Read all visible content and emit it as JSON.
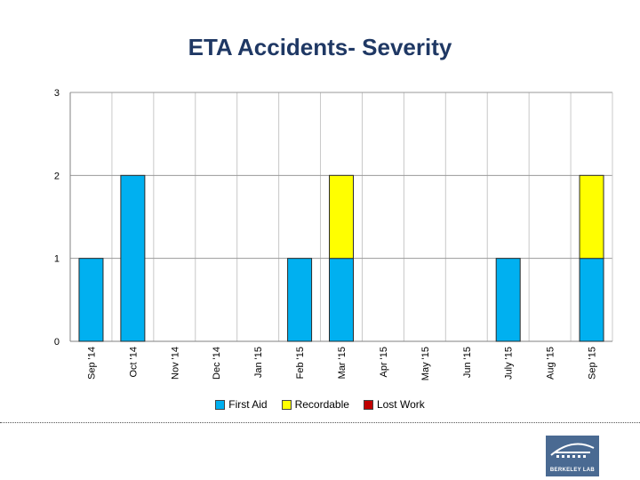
{
  "title": "ETA Accidents-  Severity",
  "logo_text": "BERKELEY LAB",
  "colors": {
    "first_aid": "#00b0f0",
    "recordable": "#ffff00",
    "lost_work": "#c00000",
    "title": "#1f3864"
  },
  "chart_data": {
    "type": "bar",
    "stacked": true,
    "title": "ETA Accidents-  Severity",
    "categories": [
      "Sep '14",
      "Oct '14",
      "Nov '14",
      "Dec '14",
      "Jan '15",
      "Feb '15",
      "Mar '15",
      "Apr '15",
      "May '15",
      "Jun '15",
      "July '15",
      "Aug '15",
      "Sep '15"
    ],
    "series": [
      {
        "name": "First Aid",
        "color": "#00b0f0",
        "values": [
          1,
          2,
          0,
          0,
          0,
          1,
          1,
          0,
          0,
          0,
          1,
          0,
          1
        ]
      },
      {
        "name": "Recordable",
        "color": "#ffff00",
        "values": [
          0,
          0,
          0,
          0,
          0,
          0,
          1,
          0,
          0,
          0,
          0,
          0,
          1
        ]
      },
      {
        "name": "Lost Work",
        "color": "#c00000",
        "values": [
          0,
          0,
          0,
          0,
          0,
          0,
          0,
          0,
          0,
          0,
          0,
          0,
          0
        ]
      }
    ],
    "ylim": [
      0,
      3
    ],
    "yticks": [
      0,
      1,
      2,
      3
    ],
    "grid": true,
    "legend": "bottom"
  }
}
